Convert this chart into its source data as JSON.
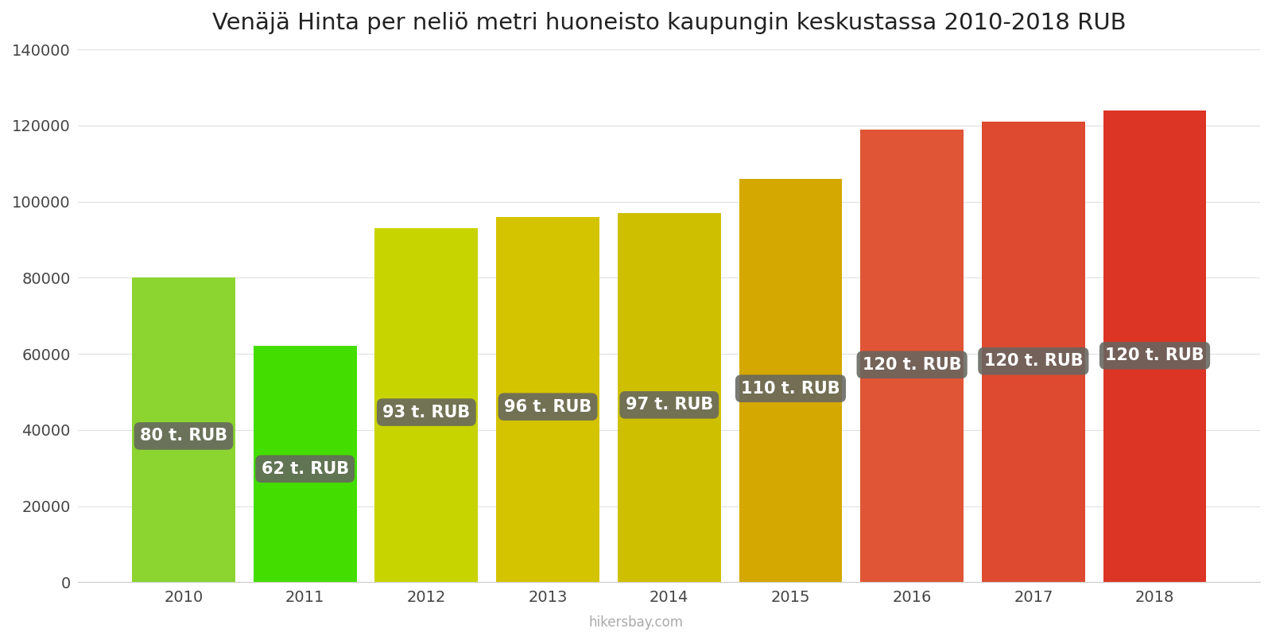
{
  "title": "Venäjä Hinta per neliö metri huoneisto kaupungin keskustassa 2010-2018 RUB",
  "years": [
    2010,
    2011,
    2012,
    2013,
    2014,
    2015,
    2016,
    2017,
    2018
  ],
  "values": [
    80000,
    62000,
    93000,
    96000,
    97000,
    106000,
    119000,
    121000,
    124000
  ],
  "labels": [
    "80 t. RUB",
    "62 t. RUB",
    "93 t. RUB",
    "96 t. RUB",
    "97 t. RUB",
    "110 t. RUB",
    "120 t. RUB",
    "120 t. RUB",
    "120 t. RUB"
  ],
  "bar_colors": [
    "#8CD430",
    "#44DD00",
    "#C8D400",
    "#D4C400",
    "#CEC000",
    "#D4A800",
    "#E05535",
    "#DE4A30",
    "#DC3525"
  ],
  "background_color": "#ffffff",
  "ylim": [
    0,
    140000
  ],
  "yticks": [
    0,
    20000,
    40000,
    60000,
    80000,
    100000,
    120000,
    140000
  ],
  "label_box_color": "#666660",
  "label_text_color": "#ffffff",
  "label_fontsize": 15,
  "title_fontsize": 21,
  "tick_fontsize": 14,
  "footer": "hikersbay.com",
  "bar_width": 0.85
}
